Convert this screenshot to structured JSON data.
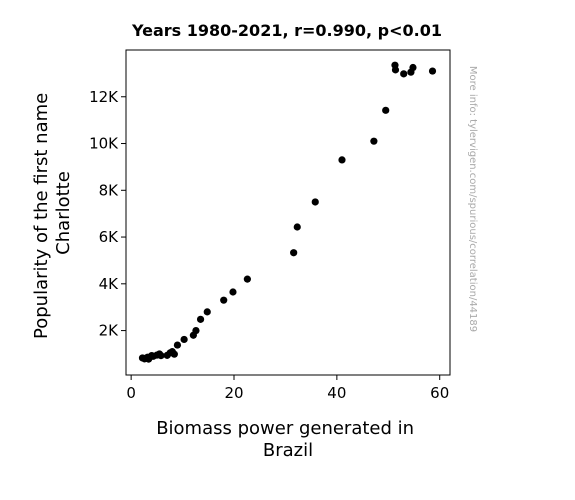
{
  "chart_data": {
    "type": "scatter",
    "title": "Years 1980-2021, r=0.990, p<0.01",
    "xlabel_lines": [
      "Biomass power generated in",
      "Brazil"
    ],
    "ylabel_lines": [
      "Popularity of the first name",
      "Charlotte"
    ],
    "xlim": [
      -1,
      62
    ],
    "ylim": [
      100,
      14000
    ],
    "x_ticks": [
      0,
      20,
      40,
      60
    ],
    "x_tick_labels": [
      "0",
      "20",
      "40",
      "60"
    ],
    "y_ticks": [
      2000,
      4000,
      6000,
      8000,
      10000,
      12000
    ],
    "y_tick_labels": [
      "2K",
      "4K",
      "6K",
      "8K",
      "10K",
      "12K"
    ],
    "grid": false,
    "marker_color": "#000000",
    "points": [
      {
        "x": 2.2,
        "y": 830
      },
      {
        "x": 2.6,
        "y": 790
      },
      {
        "x": 2.9,
        "y": 820
      },
      {
        "x": 3.2,
        "y": 860
      },
      {
        "x": 3.4,
        "y": 780
      },
      {
        "x": 3.7,
        "y": 870
      },
      {
        "x": 4.0,
        "y": 930
      },
      {
        "x": 4.3,
        "y": 900
      },
      {
        "x": 5.0,
        "y": 950
      },
      {
        "x": 5.5,
        "y": 1000
      },
      {
        "x": 5.8,
        "y": 930
      },
      {
        "x": 7.0,
        "y": 940
      },
      {
        "x": 7.6,
        "y": 1050
      },
      {
        "x": 8.0,
        "y": 1100
      },
      {
        "x": 8.4,
        "y": 990
      },
      {
        "x": 9.0,
        "y": 1380
      },
      {
        "x": 10.3,
        "y": 1620
      },
      {
        "x": 12.1,
        "y": 1800
      },
      {
        "x": 12.6,
        "y": 2000
      },
      {
        "x": 13.5,
        "y": 2480
      },
      {
        "x": 14.8,
        "y": 2800
      },
      {
        "x": 18.0,
        "y": 3300
      },
      {
        "x": 19.8,
        "y": 3650
      },
      {
        "x": 22.6,
        "y": 4200
      },
      {
        "x": 31.6,
        "y": 5330
      },
      {
        "x": 32.3,
        "y": 6430
      },
      {
        "x": 35.8,
        "y": 7500
      },
      {
        "x": 41.0,
        "y": 9300
      },
      {
        "x": 47.2,
        "y": 10100
      },
      {
        "x": 49.5,
        "y": 11420
      },
      {
        "x": 51.3,
        "y": 13350
      },
      {
        "x": 51.4,
        "y": 13150
      },
      {
        "x": 53.0,
        "y": 12980
      },
      {
        "x": 54.4,
        "y": 13050
      },
      {
        "x": 54.8,
        "y": 13250
      },
      {
        "x": 58.6,
        "y": 13100
      }
    ]
  },
  "watermark": "More info: tylervigen.com/spurious/correlation/44189"
}
